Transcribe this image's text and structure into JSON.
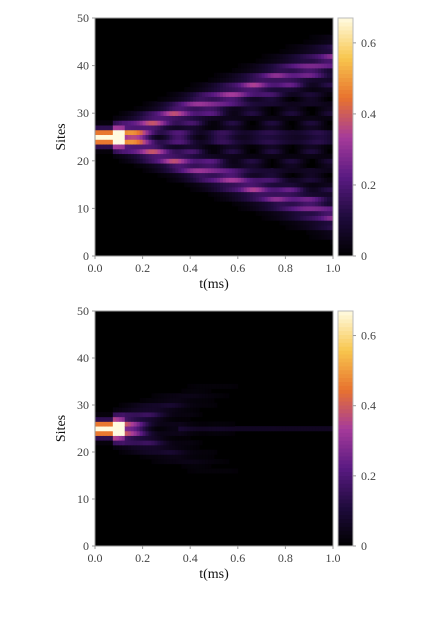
{
  "chart_data": [
    {
      "type": "heatmap",
      "title": "",
      "xlabel": "t(ms)",
      "ylabel": "Sites",
      "xlim": [
        0.0,
        1.0
      ],
      "ylim": [
        0,
        50
      ],
      "x_ticks": [
        "0.0",
        "0.2",
        "0.4",
        "0.6",
        "0.8",
        "1.0"
      ],
      "y_ticks": [
        "0",
        "10",
        "20",
        "30",
        "40",
        "50"
      ],
      "colorbar": {
        "range": [
          0,
          0.67
        ],
        "ticks": [
          "0",
          "0.2",
          "0.4",
          "0.6"
        ],
        "colormap": [
          "#000000",
          "#1f0b3d",
          "#5a1a82",
          "#a63b9a",
          "#e8732e",
          "#f8c64e",
          "#fffbe0"
        ]
      },
      "description_values": {
        "initial_site": 25,
        "initial_peak": 0.67,
        "light_cone": "ballistic spreading, reaching sites ~8 and ~42 by t = 1.0 ms",
        "interference": "bright ridges along the central site 25 and along the cone edges"
      }
    },
    {
      "type": "heatmap",
      "title": "",
      "xlabel": "t(ms)",
      "ylabel": "Sites",
      "xlim": [
        0.0,
        1.0
      ],
      "ylim": [
        0,
        50
      ],
      "x_ticks": [
        "0.0",
        "0.2",
        "0.4",
        "0.6",
        "0.8",
        "1.0"
      ],
      "y_ticks": [
        "0",
        "10",
        "20",
        "30",
        "40",
        "50"
      ],
      "colorbar": {
        "range": [
          0,
          0.67
        ],
        "ticks": [
          "0",
          "0.2",
          "0.4",
          "0.6"
        ],
        "colormap": [
          "#000000",
          "#1f0b3d",
          "#5a1a82",
          "#a63b9a",
          "#e8732e",
          "#f8c64e",
          "#fffbe0"
        ]
      },
      "description_values": {
        "initial_site": 25,
        "initial_peak": 0.67,
        "light_cone": "rapidly decaying spread, faint beyond t = 0.4 ms",
        "interference": "weak residual line at site 25 up to t = 1.0 ms"
      }
    }
  ]
}
